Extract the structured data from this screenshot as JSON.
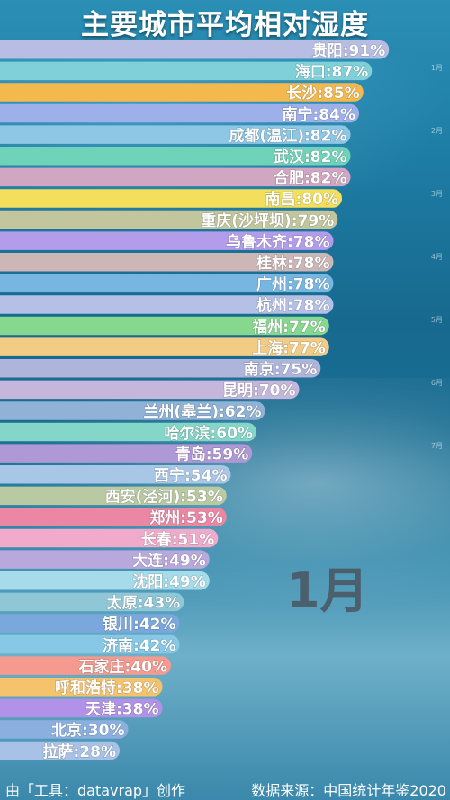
{
  "title": "主要城市平均相对湿度",
  "month": "1月",
  "footer": {
    "credit": "由「工具：datavrap」创作",
    "source": "数据来源：中国统计年鉴2020"
  },
  "side_ticks": [
    "1月",
    "2月",
    "3月",
    "4月",
    "5月",
    "6月",
    "7月"
  ],
  "chart_data": {
    "type": "bar",
    "orientation": "horizontal",
    "title": "主要城市平均相对湿度",
    "unit": "%",
    "xlim": [
      0,
      100
    ],
    "categories": [
      "贵阳",
      "海口",
      "长沙",
      "南宁",
      "成都(温江)",
      "武汉",
      "合肥",
      "南昌",
      "重庆(沙坪坝)",
      "乌鲁木齐",
      "桂林",
      "广州",
      "杭州",
      "福州",
      "上海",
      "南京",
      "昆明",
      "兰州(皋兰)",
      "哈尔滨",
      "青岛",
      "西宁",
      "西安(泾河)",
      "郑州",
      "长春",
      "大连",
      "沈阳",
      "太原",
      "银川",
      "济南",
      "石家庄",
      "呼和浩特",
      "天津",
      "北京",
      "拉萨"
    ],
    "values": [
      91,
      87,
      85,
      84,
      82,
      82,
      82,
      80,
      79,
      78,
      78,
      78,
      78,
      77,
      77,
      75,
      70,
      62,
      60,
      59,
      54,
      53,
      53,
      51,
      49,
      49,
      43,
      42,
      42,
      40,
      38,
      38,
      30,
      28
    ],
    "colors": [
      "#b7bde3",
      "#7fd0d8",
      "#f4b94e",
      "#9db0ea",
      "#8ec6e6",
      "#6fd3b9",
      "#d1a6c2",
      "#f3df5c",
      "#c3c69c",
      "#b39cea",
      "#cdb6b6",
      "#78b6e2",
      "#b5c0e6",
      "#87d88f",
      "#f2cc84",
      "#aeb4da",
      "#c5b6dc",
      "#8fb2d6",
      "#84d6c9",
      "#ae98d6",
      "#a8c6e6",
      "#b9caa2",
      "#ec86a5",
      "#f0aacb",
      "#b9a8dc",
      "#a6dbe9",
      "#8fc7d6",
      "#7aa8dc",
      "#86c8e6",
      "#f49a8e",
      "#f5c36c",
      "#b292e8",
      "#8bb0e0",
      "#a7c2e6"
    ]
  }
}
